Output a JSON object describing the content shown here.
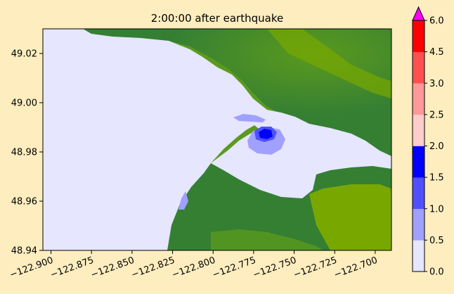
{
  "chart_data": {
    "type": "heatmap",
    "title": "2:00:00 after earthquake",
    "xlabel": "",
    "ylabel": "",
    "xlim": [
      -122.905,
      -122.69
    ],
    "ylim": [
      48.94,
      49.03
    ],
    "x_ticks": [
      -122.9,
      -122.875,
      -122.85,
      -122.825,
      -122.8,
      -122.775,
      -122.75,
      -122.725,
      -122.7
    ],
    "x_tick_labels": [
      "−122.900",
      "−122.875",
      "−122.850",
      "−122.825",
      "−122.800",
      "−122.775",
      "−122.750",
      "−122.725",
      "−122.700"
    ],
    "y_ticks": [
      48.94,
      48.96,
      48.98,
      49.0,
      49.02
    ],
    "y_tick_labels": [
      "48.94",
      "48.96",
      "48.98",
      "49.00",
      "49.02"
    ],
    "grid": false,
    "colorbar": {
      "levels": [
        0.0,
        0.5,
        1.0,
        1.5,
        2.0,
        2.5,
        3.0,
        4.5,
        6.0
      ],
      "level_labels": [
        "0.0",
        "0.5",
        "1.0",
        "1.5",
        "2.0",
        "2.5",
        "3.0",
        "4.5",
        "6.0"
      ],
      "colors": [
        "#e6e6ff",
        "#a0a0ff",
        "#5050ff",
        "#0000ff",
        "#ffcccc",
        "#ff9999",
        "#ff5050",
        "#ff0000"
      ],
      "extend_max_color": "#ff00ff"
    },
    "colors": {
      "water": "#e6e6ff",
      "land_dark": "#357f33",
      "land_mid": "#5a9a1e",
      "land_light": "#78a800"
    }
  }
}
